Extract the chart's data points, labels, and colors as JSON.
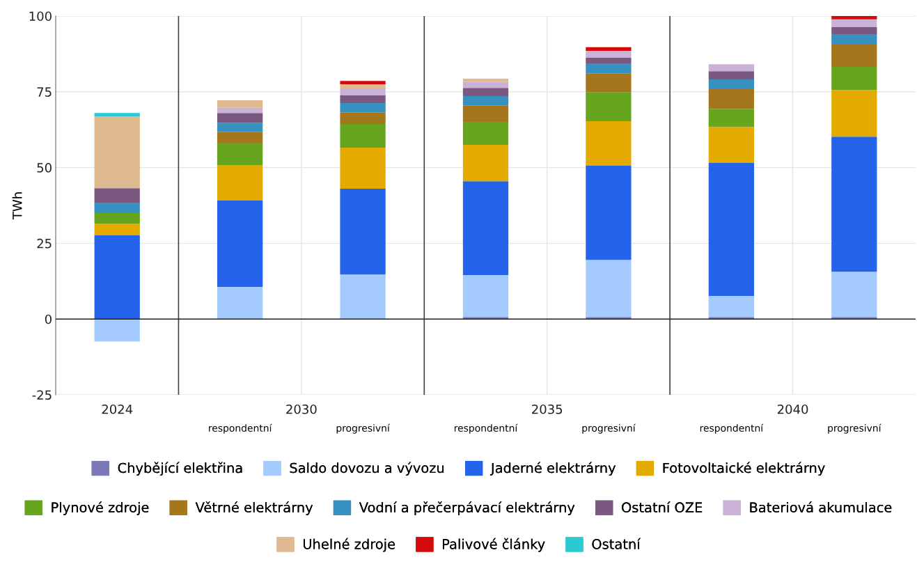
{
  "chart_data": {
    "type": "bar",
    "stacked": true,
    "ylabel": "TWh",
    "categories": [
      null,
      "respondentní",
      "progresivní",
      "respondentní",
      "progresivní",
      "respondentní",
      "progresivní"
    ],
    "annotations": [
      "2024",
      "2030",
      "2035",
      "2040"
    ],
    "ylim": [
      -25,
      100
    ],
    "yticks": [
      -25,
      0,
      25,
      50,
      75,
      100
    ],
    "grid": true,
    "legend": "bottom",
    "series": [
      {
        "name": "Chybějící elektřina",
        "color": "#7b78b8",
        "values": [
          null,
          null,
          null,
          0.7,
          0.7,
          0.7,
          0.7
        ]
      },
      {
        "name": "Saldo dovozu a vývozu",
        "color": "#a4cafe",
        "values": [
          -7.4,
          10.6,
          14.7,
          13.8,
          18.8,
          6.9,
          14.9
        ]
      },
      {
        "name": "Jaderné elektrárny",
        "color": "#2563eb",
        "values": [
          27.6,
          28.5,
          28.3,
          31.0,
          31.1,
          43.9,
          44.6
        ]
      },
      {
        "name": "Fotovoltaické elektrárny",
        "color": "#e3aa00",
        "values": [
          3.9,
          11.7,
          13.6,
          12.0,
          14.7,
          11.9,
          15.4
        ]
      },
      {
        "name": "Plynové zdroje",
        "color": "#66a61e",
        "values": [
          3.5,
          7.4,
          7.8,
          7.6,
          9.6,
          6.0,
          7.6
        ]
      },
      {
        "name": "Větrné elektrárny",
        "color": "#a6761d",
        "values": [
          null,
          3.5,
          3.7,
          5.3,
          6.1,
          6.5,
          7.6
        ]
      },
      {
        "name": "Vodní a přečerpávací elektrárny",
        "color": "#3690c0",
        "values": [
          3.4,
          3.1,
          3.2,
          3.2,
          3.4,
          3.2,
          3.2
        ]
      },
      {
        "name": "Ostatní OZE",
        "color": "#7a5880",
        "values": [
          4.8,
          3.2,
          2.5,
          2.7,
          1.8,
          2.7,
          2.3
        ]
      },
      {
        "name": "Bateriová akumulace",
        "color": "#cab2d6",
        "values": [
          null,
          1.7,
          2.3,
          1.9,
          2.3,
          2.3,
          2.6
        ]
      },
      {
        "name": "Uhelné zdroje",
        "color": "#dfb98f",
        "values": [
          23.7,
          2.5,
          1.4,
          1.1,
          null,
          null,
          null
        ]
      },
      {
        "name": "Palivové články",
        "color": "#d50b0b",
        "values": [
          null,
          null,
          1.1,
          null,
          1.2,
          null,
          1.1
        ]
      },
      {
        "name": "Ostatní",
        "color": "#2bc9d1",
        "values": [
          1.1,
          null,
          null,
          null,
          null,
          null,
          null
        ]
      }
    ]
  }
}
